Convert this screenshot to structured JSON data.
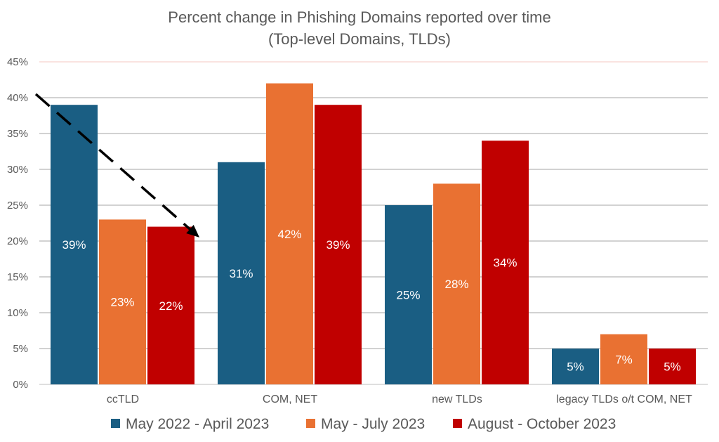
{
  "chart_data": {
    "type": "bar",
    "title": "Percent change in Phishing Domains reported over time",
    "subtitle": "(Top-level Domains, TLDs)",
    "categories": [
      "ccTLD",
      "COM, NET",
      "new TLDs",
      "legacy TLDs o/t COM, NET"
    ],
    "series": [
      {
        "name": "May 2022 - April 2023",
        "color": "#1a5e83",
        "values": [
          39,
          31,
          25,
          5
        ],
        "labels": [
          "39%",
          "31%",
          "25%",
          "5%"
        ]
      },
      {
        "name": "May - July 2023",
        "color": "#e97132",
        "values": [
          23,
          42,
          28,
          7
        ],
        "labels": [
          "23%",
          "42%",
          "28%",
          "7%"
        ]
      },
      {
        "name": "August - October 2023",
        "color": "#c00000",
        "values": [
          22,
          39,
          34,
          5
        ],
        "labels": [
          "22%",
          "39%",
          "34%",
          "5%"
        ]
      }
    ],
    "yticks": [
      "0%",
      "5%",
      "10%",
      "15%",
      "20%",
      "25%",
      "30%",
      "35%",
      "40%",
      "45%"
    ],
    "ylim": [
      0,
      45
    ],
    "grid": true,
    "legend_position": "bottom",
    "annotations": [
      {
        "type": "dashed-arrow",
        "color": "#000000",
        "from": {
          "category": "ccTLD",
          "value": 40.5,
          "side": "left"
        },
        "to": {
          "category": "ccTLD",
          "value": 20.5,
          "side": "right"
        }
      }
    ]
  }
}
